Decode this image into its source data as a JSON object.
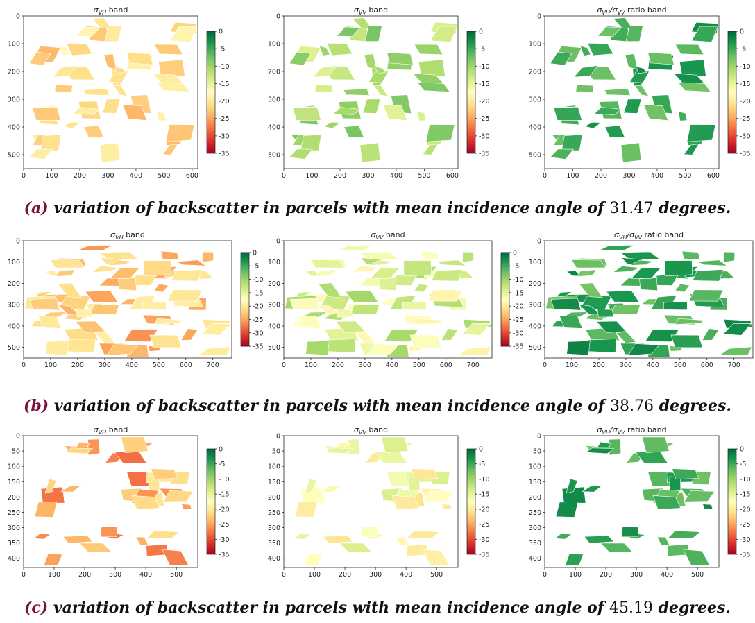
{
  "chart_data": [
    {
      "type": "heatmap",
      "row": 0,
      "col": 0,
      "title": "σ_VH band",
      "title_parts": {
        "base": "σ",
        "sub": "VH",
        "rest": " band"
      },
      "xlim": [
        0,
        620
      ],
      "ylim": [
        550,
        0
      ],
      "xticks": [
        0,
        100,
        200,
        300,
        400,
        500,
        600
      ],
      "yticks": [
        0,
        100,
        200,
        300,
        400,
        500
      ],
      "colorbar": {
        "min": -35,
        "max": 0,
        "ticks": [
          0,
          -5,
          -10,
          -15,
          -20,
          -25,
          -30,
          -35
        ],
        "colormap": "RdYlGn"
      },
      "value_range": [
        -24,
        -18
      ]
    },
    {
      "type": "heatmap",
      "row": 0,
      "col": 1,
      "title": "σ_VV band",
      "title_parts": {
        "base": "σ",
        "sub": "VV",
        "rest": " band"
      },
      "xlim": [
        0,
        620
      ],
      "ylim": [
        550,
        0
      ],
      "xticks": [
        0,
        100,
        200,
        300,
        400,
        500,
        600
      ],
      "yticks": [
        0,
        100,
        200,
        300,
        400,
        500
      ],
      "colorbar": {
        "min": -35,
        "max": 0,
        "ticks": [
          0,
          -5,
          -10,
          -15,
          -20,
          -25,
          -30,
          -35
        ],
        "colormap": "RdYlGn"
      },
      "value_range": [
        -15,
        -8
      ]
    },
    {
      "type": "heatmap",
      "row": 0,
      "col": 2,
      "title": "σ_VH/σ_VV ratio band",
      "title_parts": {
        "base": "σ",
        "sub": "VH",
        "mid": "/σ",
        "sub2": "VV",
        "rest": " ratio band"
      },
      "xlim": [
        0,
        620
      ],
      "ylim": [
        550,
        0
      ],
      "xticks": [
        0,
        100,
        200,
        300,
        400,
        500,
        600
      ],
      "yticks": [
        0,
        100,
        200,
        300,
        400,
        500
      ],
      "colorbar": {
        "min": -35,
        "max": 0,
        "ticks": [
          0,
          -5,
          -10,
          -15,
          -20,
          -25,
          -30,
          -35
        ],
        "colormap": "RdYlGn"
      },
      "value_range": [
        -8,
        -2
      ]
    },
    {
      "type": "heatmap",
      "row": 1,
      "col": 0,
      "title": "σ_VH band",
      "title_parts": {
        "base": "σ",
        "sub": "VH",
        "rest": " band"
      },
      "xlim": [
        0,
        770
      ],
      "ylim": [
        550,
        0
      ],
      "xticks": [
        0,
        100,
        200,
        300,
        400,
        500,
        600,
        700
      ],
      "yticks": [
        0,
        100,
        200,
        300,
        400,
        500
      ],
      "colorbar": {
        "min": -35,
        "max": 0,
        "ticks": [
          0,
          -5,
          -10,
          -15,
          -20,
          -25,
          -30,
          -35
        ],
        "colormap": "RdYlGn"
      },
      "value_range": [
        -26,
        -19
      ]
    },
    {
      "type": "heatmap",
      "row": 1,
      "col": 1,
      "title": "σ_VV band",
      "title_parts": {
        "base": "σ",
        "sub": "VV",
        "rest": " band"
      },
      "xlim": [
        0,
        770
      ],
      "ylim": [
        550,
        0
      ],
      "xticks": [
        0,
        100,
        200,
        300,
        400,
        500,
        600,
        700
      ],
      "yticks": [
        0,
        100,
        200,
        300,
        400,
        500
      ],
      "colorbar": {
        "min": -35,
        "max": 0,
        "ticks": [
          0,
          -5,
          -10,
          -15,
          -20,
          -25,
          -30,
          -35
        ],
        "colormap": "RdYlGn"
      },
      "value_range": [
        -19,
        -10
      ]
    },
    {
      "type": "heatmap",
      "row": 1,
      "col": 2,
      "title": "σ_VH/σ_VV ratio band",
      "title_parts": {
        "base": "σ",
        "sub": "VH",
        "mid": "/σ",
        "sub2": "VV",
        "rest": " ratio band"
      },
      "xlim": [
        0,
        770
      ],
      "ylim": [
        550,
        0
      ],
      "xticks": [
        0,
        100,
        200,
        300,
        400,
        500,
        600,
        700
      ],
      "yticks": [
        0,
        100,
        200,
        300,
        400,
        500
      ],
      "colorbar": {
        "min": -35,
        "max": 0,
        "ticks": [
          0,
          -5,
          -10,
          -15,
          -20,
          -25,
          -30,
          -35
        ],
        "colormap": "RdYlGn"
      },
      "value_range": [
        -8,
        -2
      ]
    },
    {
      "type": "heatmap",
      "row": 2,
      "col": 0,
      "title": "σ_VH band",
      "title_parts": {
        "base": "σ",
        "sub": "VH",
        "rest": " band"
      },
      "xlim": [
        0,
        570
      ],
      "ylim": [
        430,
        0
      ],
      "xticks": [
        0,
        100,
        200,
        300,
        400,
        500
      ],
      "yticks": [
        0,
        50,
        100,
        150,
        200,
        250,
        300,
        350,
        400
      ],
      "colorbar": {
        "min": -35,
        "max": 0,
        "ticks": [
          0,
          -5,
          -10,
          -15,
          -20,
          -25,
          -30,
          -35
        ],
        "colormap": "RdYlGn"
      },
      "value_range": [
        -28,
        -20
      ]
    },
    {
      "type": "heatmap",
      "row": 2,
      "col": 1,
      "title": "σ_VV band",
      "title_parts": {
        "base": "σ",
        "sub": "VV",
        "rest": " band"
      },
      "xlim": [
        0,
        570
      ],
      "ylim": [
        430,
        0
      ],
      "xticks": [
        0,
        100,
        200,
        300,
        400,
        500
      ],
      "yticks": [
        0,
        50,
        100,
        150,
        200,
        250,
        300,
        350,
        400
      ],
      "colorbar": {
        "min": -35,
        "max": 0,
        "ticks": [
          0,
          -5,
          -10,
          -15,
          -20,
          -25,
          -30,
          -35
        ],
        "colormap": "RdYlGn"
      },
      "value_range": [
        -21,
        -14
      ]
    },
    {
      "type": "heatmap",
      "row": 2,
      "col": 2,
      "title": "σ_VH/σ_VV ratio band",
      "title_parts": {
        "base": "σ",
        "sub": "VH",
        "mid": "/σ",
        "sub2": "VV",
        "rest": " ratio band"
      },
      "xlim": [
        0,
        570
      ],
      "ylim": [
        430,
        0
      ],
      "xticks": [
        0,
        100,
        200,
        300,
        400,
        500
      ],
      "yticks": [
        0,
        50,
        100,
        150,
        200,
        250,
        300,
        350,
        400
      ],
      "colorbar": {
        "min": -35,
        "max": 0,
        "ticks": [
          0,
          -5,
          -10,
          -15,
          -20,
          -25,
          -30,
          -35
        ],
        "colormap": "RdYlGn"
      },
      "value_range": [
        -8,
        -2
      ]
    }
  ],
  "captions": [
    {
      "label": "(a)",
      "text_before": " variation of backscatter in parcels with mean incidence angle of ",
      "value": "31.47",
      "text_after": " degrees."
    },
    {
      "label": "(b)",
      "text_before": " variation of backscatter in parcels with mean incidence angle of ",
      "value": "38.76",
      "text_after": " degrees."
    },
    {
      "label": "(c)",
      "text_before": " variation of backscatter in parcels with mean incidence angle of ",
      "value": "45.19",
      "text_after": " degrees."
    }
  ],
  "colors": {
    "colormap_stops": [
      "#a50026",
      "#d73027",
      "#f46d43",
      "#fdae61",
      "#fee08b",
      "#ffffbf",
      "#d9ef8b",
      "#a6d96a",
      "#66bd63",
      "#1a9850",
      "#006837"
    ]
  }
}
